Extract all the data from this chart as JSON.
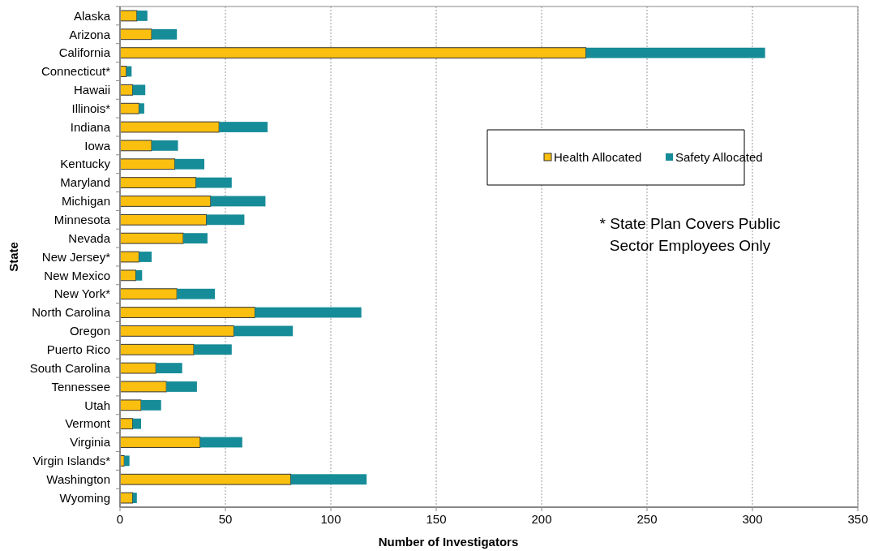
{
  "chart_data": {
    "type": "bar",
    "orientation": "horizontal",
    "stacked": true,
    "xlabel": "Number of Investigators",
    "ylabel": "State",
    "categories": [
      "Alaska",
      "Arizona",
      "California",
      "Connecticut*",
      "Hawaii",
      "Illinois*",
      "Indiana",
      "Iowa",
      "Kentucky",
      "Maryland",
      "Michigan",
      "Minnesota",
      "Nevada",
      "New Jersey*",
      "New Mexico",
      "New York*",
      "North Carolina",
      "Oregon",
      "Puerto Rico",
      "South Carolina",
      "Tennessee",
      "Utah",
      "Vermont",
      "Virginia",
      "Virgin Islands*",
      "Washington",
      "Wyoming"
    ],
    "series": [
      {
        "name": "Health Allocated",
        "color": "#fbbf0f",
        "values": [
          8,
          15,
          221,
          3,
          6,
          9,
          47,
          15,
          26,
          36,
          43,
          41,
          30,
          9,
          7.5,
          27,
          64,
          54,
          35,
          17,
          22,
          10,
          6,
          38,
          2,
          81,
          6
        ]
      },
      {
        "name": "Safety Allocated",
        "color": "#168c98",
        "values": [
          5,
          12,
          85,
          2.5,
          6,
          2.5,
          23,
          12.5,
          14,
          17,
          26,
          18,
          11.5,
          6,
          3,
          18,
          50.5,
          28,
          18,
          12.5,
          14.5,
          9.5,
          4,
          20,
          2.5,
          36,
          2
        ]
      }
    ],
    "xlim": [
      0,
      350
    ],
    "xticks": [
      0,
      50,
      100,
      150,
      200,
      250,
      300,
      350
    ],
    "grid": "x",
    "legend": "right",
    "annotations": [
      "* State Plan Covers Public Sector Employees Only"
    ]
  }
}
